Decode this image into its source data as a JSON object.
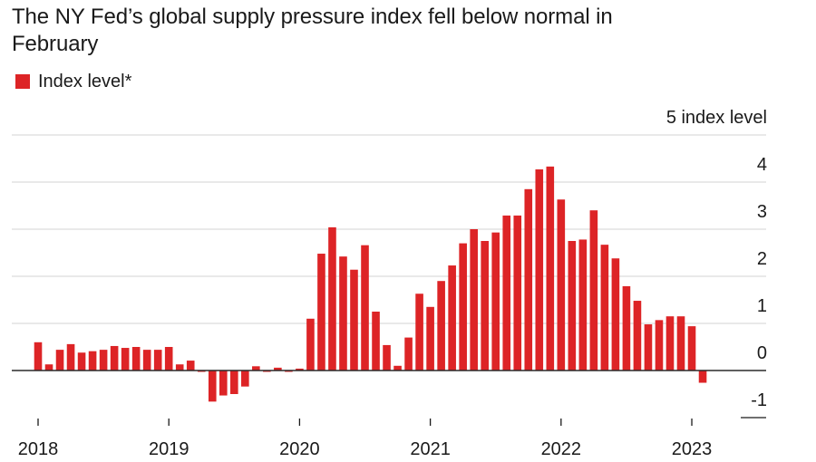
{
  "title": "The NY Fed’s global supply pressure index fell below normal in February",
  "legend": {
    "label": "Index level*",
    "color": "#DD2426"
  },
  "chart_data": {
    "type": "bar",
    "title": "The NY Fed’s global supply pressure index fell below normal in February",
    "xlabel": "",
    "ylabel": "index level",
    "ylim": [
      -1,
      5
    ],
    "yticks": [
      -1,
      0,
      1,
      2,
      3,
      4,
      5
    ],
    "ytick_labels": [
      "-1",
      "0",
      "1",
      "2",
      "3",
      "4",
      "5 index level"
    ],
    "xticks": [
      "2018",
      "2019",
      "2020",
      "2021",
      "2022",
      "2023"
    ],
    "grid": true,
    "legend_position": "top-left",
    "series": [
      {
        "name": "Index level*",
        "color": "#DD2426",
        "start": "2018-01",
        "frequency": "monthly",
        "values": [
          0.6,
          0.13,
          0.44,
          0.56,
          0.38,
          0.41,
          0.44,
          0.52,
          0.48,
          0.5,
          0.44,
          0.44,
          0.5,
          0.13,
          0.21,
          -0.02,
          -0.66,
          -0.53,
          -0.5,
          -0.34,
          0.09,
          -0.02,
          0.06,
          -0.02,
          0.04,
          1.1,
          2.48,
          3.04,
          2.42,
          2.14,
          2.66,
          1.25,
          0.54,
          0.1,
          0.7,
          1.63,
          1.35,
          1.9,
          2.23,
          2.7,
          3.0,
          2.75,
          2.93,
          3.29,
          3.29,
          3.85,
          4.27,
          4.33,
          3.63,
          2.75,
          2.78,
          3.4,
          2.67,
          2.38,
          1.79,
          1.48,
          0.98,
          1.07,
          1.15,
          1.15,
          0.94,
          -0.26
        ]
      }
    ]
  }
}
